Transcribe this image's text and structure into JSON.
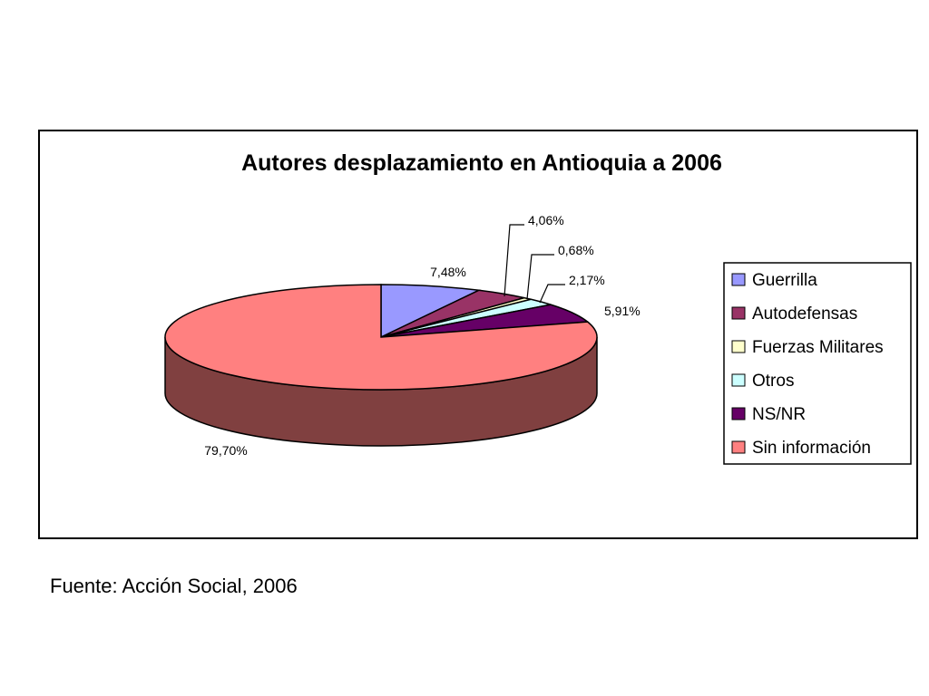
{
  "chart_data": {
    "type": "pie",
    "title": "Autores desplazamiento en Antioquia a 2006",
    "categories": [
      "Guerrilla",
      "Autodefensas",
      "Fuerzas Militares",
      "Otros",
      "NS/NR",
      "Sin información"
    ],
    "values": [
      7.48,
      4.06,
      0.68,
      2.17,
      5.91,
      79.7
    ],
    "value_labels": [
      "7,48%",
      "4,06%",
      "0,68%",
      "2,17%",
      "5,91%",
      "79,70%"
    ],
    "colors": [
      "#9999FF",
      "#993366",
      "#FFFFCC",
      "#CCFFFF",
      "#660066",
      "#FF8080"
    ],
    "side_colors": [
      "#7B7BCC",
      "#7A2B52",
      "#CCCCA0",
      "#A0CCCC",
      "#4A0049",
      "#804040"
    ],
    "legend_position": "right",
    "style": "3d"
  },
  "source": "Fuente: Acción Social, 2006"
}
